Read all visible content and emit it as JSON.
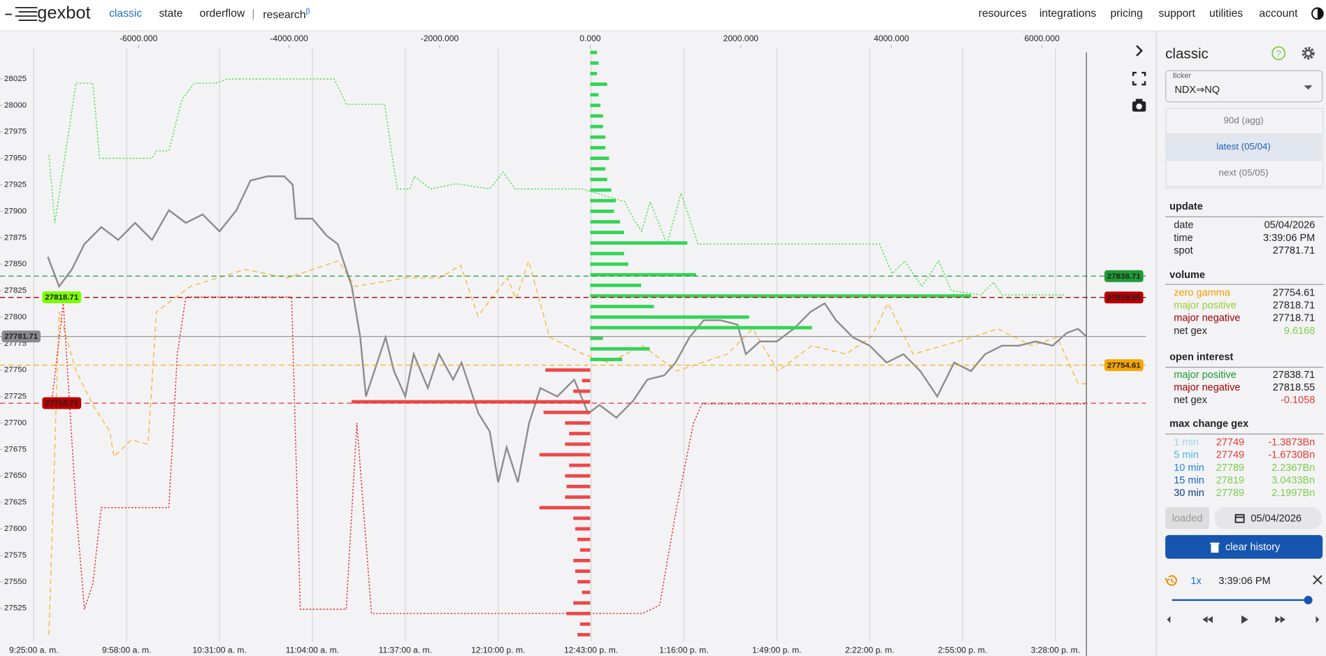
{
  "nav": {
    "brand": "gexbot",
    "links": [
      "classic",
      "state",
      "orderflow",
      "research"
    ],
    "beta": "β",
    "right_links": [
      "resources",
      "integrations",
      "pricing",
      "support",
      "utilities",
      "account"
    ]
  },
  "chart_data": {
    "type": "gex",
    "xlim": [
      -7840,
      6740
    ],
    "xticks": [
      {
        "value": -6000,
        "label": "-6000.000"
      },
      {
        "value": -4000,
        "label": "-4000.000"
      },
      {
        "value": -2000,
        "label": "-2000.000"
      },
      {
        "value": 0,
        "label": "0.000"
      },
      {
        "value": 2000,
        "label": "2000.000"
      },
      {
        "value": 4000,
        "label": "4000.000"
      },
      {
        "value": 6000,
        "label": "6000.000"
      }
    ],
    "ylim": [
      27480,
      28070
    ],
    "yticks": [
      27525,
      27550,
      27575,
      27600,
      27625,
      27650,
      27675,
      27700,
      27725,
      27750,
      27775,
      27800,
      27825,
      27850,
      27875,
      27900,
      27925,
      27950,
      27975,
      28000,
      28025
    ],
    "tlim": [
      553,
      943
    ],
    "tticks": [
      {
        "value": 565,
        "label": "9:25:00 a. m."
      },
      {
        "value": 598,
        "label": "9:58:00 a. m."
      },
      {
        "value": 631,
        "label": "10:31:00 a. m."
      },
      {
        "value": 664,
        "label": "11:04:00 a. m."
      },
      {
        "value": 697,
        "label": "11:37:00 a. m."
      },
      {
        "value": 730,
        "label": "12:10:00 p. m."
      },
      {
        "value": 763,
        "label": "12:43:00 p. m."
      },
      {
        "value": 796,
        "label": "1:16:00 p. m."
      },
      {
        "value": 829,
        "label": "1:49:00 p. m."
      },
      {
        "value": 862,
        "label": "2:22:00 p. m."
      },
      {
        "value": 895,
        "label": "2:55:00 p. m."
      },
      {
        "value": 928,
        "label": "3:28:00 p. m."
      }
    ],
    "grid": true,
    "bars": {
      "positive_color": "#33d455",
      "negative_color": "#ef4747",
      "strikes": [
        28050,
        28040,
        28030,
        28020,
        28010,
        28000,
        27990,
        27980,
        27970,
        27960,
        27950,
        27940,
        27930,
        27920,
        27910,
        27900,
        27890,
        27880,
        27870,
        27860,
        27850,
        27840,
        27830,
        27820,
        27810,
        27800,
        27790,
        27780,
        27770,
        27760,
        27750,
        27740,
        27730,
        27720,
        27710,
        27700,
        27690,
        27680,
        27670,
        27660,
        27650,
        27640,
        27630,
        27620,
        27610,
        27600,
        27590,
        27580,
        27570,
        27560,
        27550,
        27540,
        27530,
        27520,
        27510,
        27500
      ],
      "values": [
        90,
        110,
        90,
        225,
        110,
        135,
        170,
        170,
        200,
        200,
        250,
        200,
        225,
        280,
        340,
        315,
        395,
        450,
        1290,
        450,
        505,
        1405,
        675,
        5060,
        845,
        2110,
        2945,
        170,
        790,
        425,
        -595,
        -110,
        -225,
        -3170,
        -620,
        -335,
        -280,
        -335,
        -675,
        -280,
        -335,
        -315,
        -335,
        -675,
        -225,
        -200,
        -170,
        -135,
        -225,
        -200,
        -170,
        -110,
        -225,
        -315,
        -135,
        -170
      ]
    },
    "series": [
      {
        "color": "#f5b942",
        "style": "dashed",
        "x": [
          570.4,
          574,
          580,
          586,
          592,
          593.5,
          599.6,
          605.6,
          608.6,
          620.6,
          640.1,
          655.1,
          673.2,
          679.2,
          697.2,
          709.2,
          716.7,
          722.8,
          733.3,
          736.3,
          740.8,
          748.3,
          760.3,
          769.3,
          781.3,
          793.4,
          811.4,
          820.4,
          829.4,
          841.4,
          853.5,
          862.5,
          868.5,
          877.5,
          898.5,
          907.5,
          919.6,
          928.6,
          936.1,
          939
        ],
        "values": [
          27500,
          27805,
          27749,
          27717,
          27692,
          27668,
          27684,
          27680,
          27805,
          27829,
          27845,
          27837,
          27853,
          27829,
          27837,
          27837,
          27849,
          27801,
          27837,
          27817,
          27853,
          27781,
          27765,
          27757,
          27773,
          27749,
          27765,
          27789,
          27749,
          27773,
          27765,
          27781,
          27813,
          27765,
          27781,
          27789,
          27773,
          27781,
          27737,
          27737
        ]
      },
      {
        "color": "#4fe04f",
        "style": "dotted",
        "x": [
          570.4,
          572.5,
          580,
          586,
          588.4,
          607,
          608.6,
          613,
          617.6,
          622,
          629.6,
          634,
          671.7,
          674.7,
          676,
          689.7,
          692.7,
          694.2,
          698.7,
          700.2,
          706,
          715,
          727,
          731.8,
          736,
          760,
          775,
          778,
          781,
          784,
          790,
          795,
          801,
          865.5,
          870,
          874.5,
          880.5,
          886.5,
          891,
          901.5,
          906,
          909,
          931.6
        ],
        "values": [
          27953,
          27889,
          28021,
          28021,
          27950,
          27950,
          27957,
          27957,
          28005,
          28021,
          28021,
          28025,
          28025,
          28009,
          28001,
          28001,
          27945,
          27921,
          27921,
          27933,
          27921,
          27926,
          27921,
          27937,
          27921,
          27921,
          27909,
          27893,
          27881,
          27909,
          27869,
          27917,
          27869,
          27869,
          27841,
          27853,
          27829,
          27853,
          27825,
          27821,
          27833,
          27821,
          27821
        ]
      },
      {
        "color": "#e83030",
        "style": "dotted",
        "x": [
          571.6,
          575.5,
          580,
          583,
          586,
          589,
          613,
          616,
          619,
          656.6,
          659.7,
          676,
          679.8,
          685,
          781.3,
          787.4,
          793.4,
          799.4,
          802.4,
          939
        ],
        "values": [
          27725,
          27813,
          27620,
          27524,
          27548,
          27620,
          27620,
          27765,
          27819,
          27819,
          27524,
          27524,
          27700,
          27520,
          27520,
          27528,
          27620,
          27700,
          27718,
          27718
        ]
      },
      {
        "color": "#8c8c8c",
        "style": "solid",
        "x": [
          570,
          574,
          578.5,
          583,
          589,
          595,
          601,
          607,
          613,
          619,
          625,
          631,
          637,
          642,
          648,
          654,
          657,
          658,
          664,
          669,
          673,
          678,
          681,
          683,
          686,
          690,
          693,
          697,
          700,
          705,
          709,
          714,
          717,
          720,
          723,
          727,
          730,
          733,
          737,
          741,
          745,
          751,
          757,
          762,
          766,
          772,
          778,
          783,
          789,
          793,
          798,
          803,
          809,
          815,
          818,
          823,
          829,
          835,
          841,
          846,
          850,
          856,
          862,
          868,
          874,
          880,
          886,
          892,
          898,
          903,
          909,
          915,
          921,
          927,
          932,
          936,
          939
        ],
        "values": [
          27857,
          27829,
          27845,
          27869,
          27885,
          27873,
          27889,
          27873,
          27901,
          27889,
          27897,
          27881,
          27901,
          27929,
          27933,
          27933,
          27925,
          27893,
          27893,
          27877,
          27869,
          27829,
          27781,
          27725,
          27749,
          27781,
          27749,
          27725,
          27765,
          27733,
          27765,
          27741,
          27757,
          27733,
          27709,
          27692,
          27644,
          27677,
          27644,
          27700,
          27733,
          27725,
          27741,
          27709,
          27717,
          27705,
          27721,
          27741,
          27745,
          27757,
          27781,
          27797,
          27797,
          27793,
          27765,
          27777,
          27777,
          27789,
          27805,
          27813,
          27797,
          27781,
          27773,
          27757,
          27765,
          27749,
          27725,
          27757,
          27749,
          27765,
          27773,
          27773,
          27777,
          27773,
          27785,
          27789,
          27781.71
        ]
      }
    ],
    "levels": [
      {
        "value": 27838.71,
        "color": "#1f9a36",
        "style": "dashed",
        "label_side": "right",
        "label_color": "#1f9a36"
      },
      {
        "value": 27818.71,
        "color": "#8b3a0a",
        "style": "dashed",
        "label_side": "left",
        "label_color": "#7cfc00"
      },
      {
        "value": 27818.55,
        "color": "#a00000",
        "style": "dashed",
        "label_side": "right",
        "label_color": "#b80000"
      },
      {
        "value": 27754.61,
        "color": "#f5a500",
        "style": "dashed",
        "label_side": "right",
        "label_color": "#f5a500"
      },
      {
        "value": 27718.71,
        "color": "#dd3333",
        "style": "dashed",
        "label_side": "left",
        "label_color": "#b80000"
      },
      {
        "value": 27781.71,
        "color": "#999999",
        "style": "solid",
        "label_side": "left",
        "label_color": "#8a8a8a"
      }
    ]
  },
  "sidebar": {
    "title": "classic",
    "ticker_label": "ticker",
    "ticker": "NDX⇒NQ",
    "expiries": [
      "90d (agg)",
      "latest (05/04)",
      "next (05/05)"
    ],
    "update": {
      "title": "update",
      "rows": [
        [
          "date",
          "05/04/2026"
        ],
        [
          "time",
          "3:39:06 PM"
        ],
        [
          "spot",
          "27781.71"
        ]
      ]
    },
    "volume": {
      "title": "volume",
      "rows": [
        [
          "zero gamma",
          "27754.61"
        ],
        [
          "major positive",
          "27818.71"
        ],
        [
          "major negative",
          "27718.71"
        ],
        [
          "net gex",
          "9.6168"
        ]
      ]
    },
    "open_interest": {
      "title": "open interest",
      "rows": [
        [
          "major positive",
          "27838.71"
        ],
        [
          "major negative",
          "27818.55"
        ],
        [
          "net gex",
          "-0.1058"
        ]
      ]
    },
    "max_change": {
      "title": "max change gex",
      "rows": [
        [
          "1 min",
          "27749",
          "-1.3873Bn"
        ],
        [
          "5 min",
          "27749",
          "-1.6730Bn"
        ],
        [
          "10 min",
          "27789",
          "2.2367Bn"
        ],
        [
          "15 min",
          "27819",
          "3.0433Bn"
        ],
        [
          "30 min",
          "27789",
          "2.1997Bn"
        ]
      ]
    },
    "loaded": "loaded",
    "date": "05/04/2026",
    "clear": "clear history",
    "speed": "1x",
    "time": "3:39:06 PM"
  }
}
